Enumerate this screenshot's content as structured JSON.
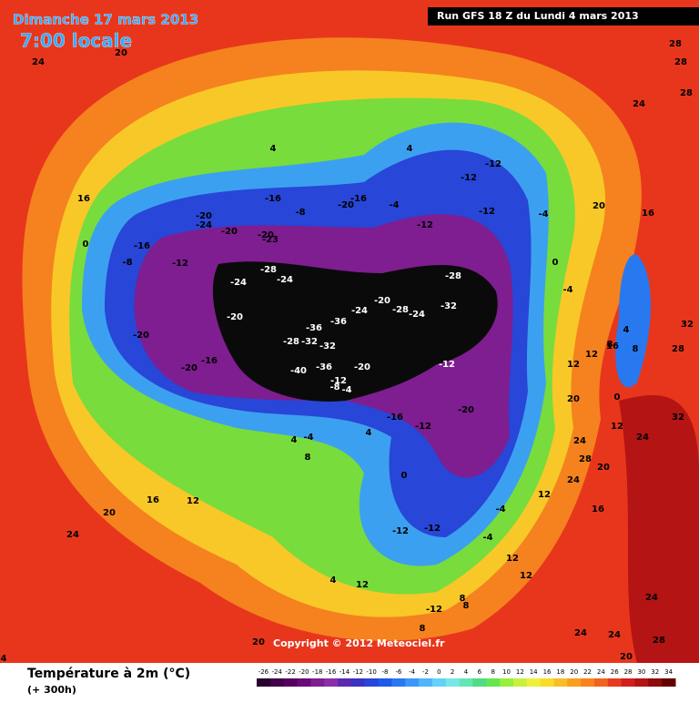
{
  "header": {
    "date": "Dimanche 17 mars 2013",
    "time": "7:00 locale",
    "run": "Run GFS 18 Z du Lundi 4 mars 2013"
  },
  "copyright": "Copyright © 2012 Meteociel.fr",
  "footer": {
    "title": "Température à 2m (°C)",
    "lead": "(+ 300h)"
  },
  "legend": {
    "ticks": [
      -26,
      -24,
      -22,
      -20,
      -18,
      -16,
      -14,
      -12,
      -10,
      -8,
      -6,
      -4,
      -2,
      0,
      2,
      4,
      6,
      8,
      10,
      12,
      14,
      16,
      18,
      20,
      22,
      24,
      26,
      28,
      30,
      32,
      34
    ],
    "colors": [
      "#2a0030",
      "#40004a",
      "#55005f",
      "#6a0a78",
      "#7e1e90",
      "#8a2fa8",
      "#5a2ab0",
      "#3c32c0",
      "#2846d8",
      "#1e5ae8",
      "#2878f0",
      "#3c96f8",
      "#50b4f8",
      "#64d2f8",
      "#78e6e6",
      "#64e6b4",
      "#50dc82",
      "#64e650",
      "#96f03c",
      "#c8f03c",
      "#f0f03c",
      "#f8dc28",
      "#f8be28",
      "#f8a01e",
      "#f8821e",
      "#f0641e",
      "#e63c1e",
      "#d21e1e",
      "#b41414",
      "#8c0a0a",
      "#640000"
    ]
  },
  "map_labels": [
    24,
    20,
    28,
    28,
    28,
    24,
    4,
    4,
    -12,
    -12,
    16,
    -16,
    -16,
    -20,
    -4,
    -8,
    -12,
    -12,
    -4,
    20,
    16,
    -20,
    -24,
    -20,
    -20,
    -23,
    -16,
    0,
    -12,
    -8,
    -28,
    -24,
    -28,
    -24,
    0,
    -4,
    -20,
    -24,
    -28,
    -24,
    -32,
    -20,
    -36,
    -36,
    -20,
    -28,
    -32,
    -32,
    4,
    8,
    16,
    32,
    28,
    8,
    12,
    -12,
    -20,
    -16,
    -40,
    -36,
    -20,
    -12,
    -8,
    -4,
    12,
    20,
    0,
    -20,
    -16,
    -12,
    32,
    12,
    24,
    4,
    4,
    -4,
    24,
    8,
    28,
    20,
    0,
    24,
    16,
    12,
    12,
    20,
    -4,
    16,
    24,
    -12,
    -12,
    -4,
    4,
    12,
    12,
    12,
    8,
    -12,
    8,
    8,
    24,
    24,
    24,
    28,
    20,
    20,
    4
  ]
}
